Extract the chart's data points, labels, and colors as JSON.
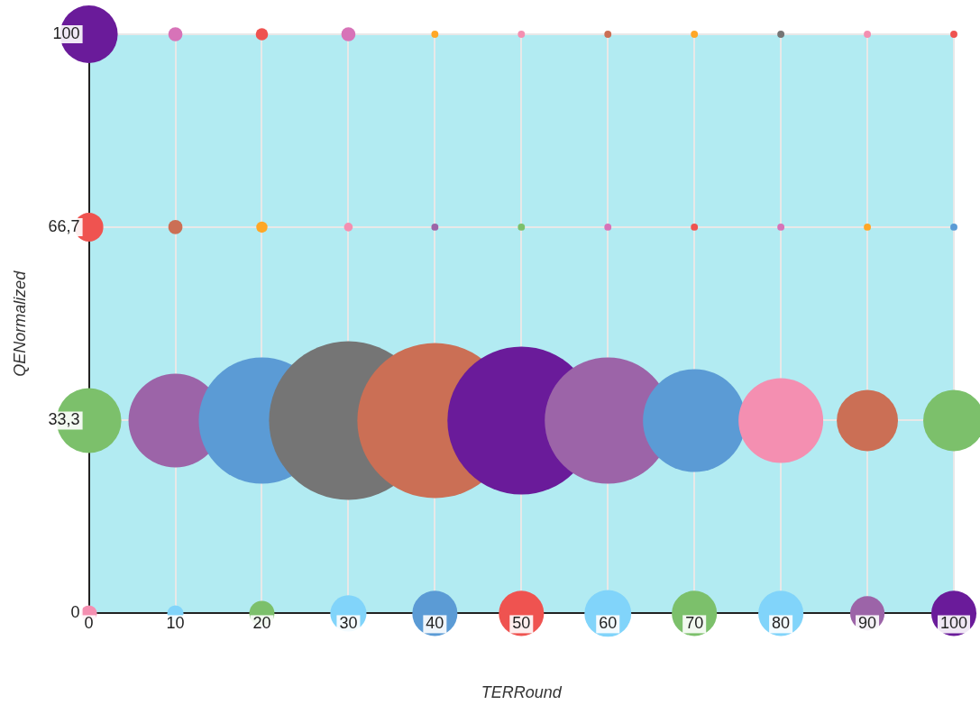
{
  "chart_data": {
    "type": "bubble",
    "xlabel": "TERRound",
    "ylabel": "QENormalized",
    "xlim": [
      0,
      100
    ],
    "xticks": [
      0,
      10,
      20,
      30,
      40,
      50,
      60,
      70,
      80,
      90,
      100
    ],
    "ylim": [
      0,
      100
    ],
    "yticks": [
      0,
      {
        "value": 33.3,
        "label": "33,3"
      },
      {
        "value": 66.7,
        "label": "66,7"
      },
      100
    ],
    "grid": true,
    "legend": false,
    "series": [
      {
        "x": [
          0,
          10,
          20,
          30,
          40,
          50,
          60,
          70,
          80,
          90,
          100
        ],
        "values": [
          100,
          100,
          100,
          100,
          100,
          100,
          100,
          100,
          100,
          100,
          100
        ],
        "sizes": [
          0.132,
          0.008,
          0.006,
          0.008,
          0.002,
          0.002,
          0.002,
          0.002,
          0.002,
          0.002,
          0.002
        ],
        "colors": [
          "#6a1b9a",
          "#d773b8",
          "#ef5350",
          "#d773b8",
          "#ffa726",
          "#f48fb1",
          "#cb6f55",
          "#ffa726",
          "#757575",
          "#f48fb1",
          "#ef5350"
        ]
      },
      {
        "x": [
          0,
          10,
          20,
          30,
          40,
          50,
          60,
          70,
          80,
          90,
          100
        ],
        "values": [
          66.7,
          66.7,
          66.7,
          66.7,
          66.7,
          66.7,
          66.7,
          66.7,
          66.7,
          66.7,
          66.7
        ],
        "sizes": [
          0.033,
          0.008,
          0.005,
          0.003,
          0.002,
          0.002,
          0.002,
          0.002,
          0.002,
          0.002,
          0.002
        ],
        "colors": [
          "#ef5350",
          "#cb6f55",
          "#ffa726",
          "#f48fb1",
          "#9c64a8",
          "#7cc06b",
          "#d773b8",
          "#ef5350",
          "#d773b8",
          "#ffa726",
          "#5b9bd5"
        ]
      },
      {
        "x": [
          0,
          10,
          20,
          30,
          40,
          50,
          60,
          70,
          80,
          90,
          100
        ],
        "values": [
          33.3,
          33.3,
          33.3,
          33.3,
          33.3,
          33.3,
          33.3,
          33.3,
          33.3,
          33.3,
          33.3
        ],
        "sizes": [
          0.167,
          0.349,
          0.633,
          1,
          0.955,
          0.868,
          0.633,
          0.42,
          0.285,
          0.149,
          0.149
        ],
        "colors": [
          "#7cc06b",
          "#9c64a8",
          "#5b9bd5",
          "#757575",
          "#cb6f55",
          "#6a1b9a",
          "#9c64a8",
          "#5b9bd5",
          "#f48fb1",
          "#cb6f55",
          "#7cc06b"
        ]
      },
      {
        "x": [
          0,
          10,
          20,
          30,
          40,
          50,
          60,
          70,
          80,
          90,
          100
        ],
        "values": [
          0,
          0,
          0,
          0,
          0,
          0,
          0,
          0,
          0,
          0,
          0
        ],
        "sizes": [
          0.0105,
          0.0105,
          0.025,
          0.052,
          0.081,
          0.081,
          0.087,
          0.081,
          0.081,
          0.047,
          0.081
        ],
        "colors": [
          "#f48fb1",
          "#81d4fa",
          "#7cc06b",
          "#81d4fa",
          "#5b9bd5",
          "#ef5350",
          "#81d4fa",
          "#7cc06b",
          "#81d4fa",
          "#9c64a8",
          "#6a1b9a"
        ]
      }
    ]
  }
}
